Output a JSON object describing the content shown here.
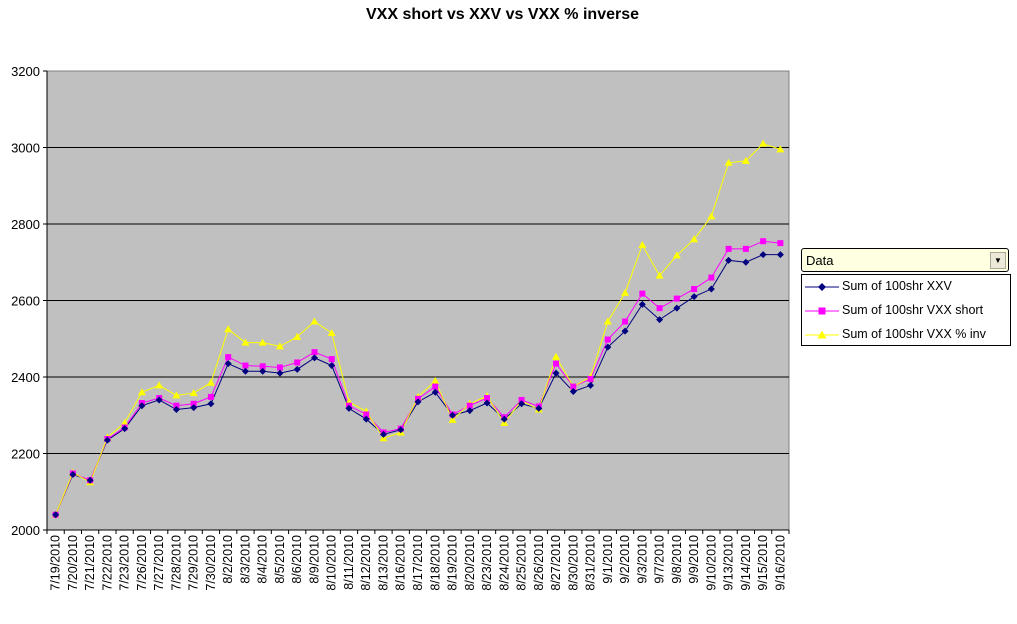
{
  "chart_data": {
    "type": "line",
    "title": "VXX short vs XXV vs VXX % inverse",
    "xlabel": "",
    "ylabel": "",
    "ylim": [
      2000,
      3200
    ],
    "yticks": [
      2000,
      2200,
      2400,
      2600,
      2800,
      3000,
      3200
    ],
    "grid": true,
    "legend_title": "Data",
    "legend_position": "right",
    "categories": [
      "7/19/2010",
      "",
      "7/21/2010",
      "7/22/2010",
      "7/23/2010",
      "7/26/2010",
      "7/27/2010",
      "7/28/2010",
      "7/29/2010",
      "7/30/2010",
      "8/2/2010",
      "",
      "8/4/2010",
      "8/5/2010",
      "8/6/2010",
      "8/9/2010",
      "8/10/2010",
      "8/11/2010",
      "8/12/2010",
      "8/13/2010",
      "8/16/2010",
      "8/17/2010",
      "8/18/2010",
      "8/19/2010",
      "8/20/2010",
      "8/23/2010",
      "8/24/2010",
      "8/25/2010",
      "8/26/2010",
      "8/27/2010",
      "8/30/2010",
      "8/31/2010",
      "9/1/2010",
      "9/2/2010",
      "9/3/2010",
      "9/7/2010",
      "9/8/2010",
      "9/9/2010",
      "9/10/2010",
      "9/13/2010",
      "9/14/2010",
      "9/15/2010",
      "9/16/2010"
    ],
    "tick_labels": [
      "7/19/2010",
      "7/20/2010",
      "7/21/2010",
      "7/22/2010",
      "7/23/2010",
      "7/26/2010",
      "7/27/2010",
      "7/28/2010",
      "7/29/2010",
      "7/30/2010",
      "8/2/2010",
      "8/3/2010",
      "8/4/2010",
      "8/5/2010",
      "8/6/2010",
      "8/9/2010",
      "8/10/2010",
      "8/11/2010",
      "8/12/2010",
      "8/13/2010",
      "8/16/2010",
      "8/17/2010",
      "8/18/2010",
      "8/19/2010",
      "8/20/2010",
      "8/23/2010",
      "8/24/2010",
      "8/25/2010",
      "8/26/2010",
      "8/27/2010",
      "8/30/2010",
      "8/31/2010",
      "9/1/2010",
      "9/2/2010",
      "9/3/2010",
      "9/7/2010",
      "9/8/2010",
      "9/9/2010",
      "9/10/2010",
      "9/13/2010",
      "9/14/2010",
      "9/15/2010",
      "9/16/2010"
    ],
    "series": [
      {
        "name": "Sum of 100shr XXV",
        "color": "#000080",
        "marker": "diamond",
        "values": [
          2040,
          2145,
          2130,
          2235,
          2265,
          2325,
          2340,
          2315,
          2320,
          2330,
          2435,
          2415,
          2415,
          2410,
          2420,
          2450,
          2430,
          2318,
          2290,
          2250,
          2262,
          2335,
          2360,
          2300,
          2312,
          2332,
          2290,
          2330,
          2318,
          2410,
          2362,
          2378,
          2478,
          2520,
          2590,
          2550,
          2580,
          2610,
          2630,
          2705,
          2700,
          2720,
          2720
        ]
      },
      {
        "name": "Sum of 100shr VXX short",
        "color": "#ff00ff",
        "marker": "square",
        "values": [
          2040,
          2148,
          2130,
          2238,
          2268,
          2332,
          2345,
          2325,
          2330,
          2348,
          2452,
          2430,
          2428,
          2425,
          2438,
          2465,
          2447,
          2325,
          2302,
          2255,
          2265,
          2343,
          2375,
          2302,
          2325,
          2345,
          2295,
          2340,
          2323,
          2435,
          2375,
          2395,
          2498,
          2545,
          2618,
          2580,
          2605,
          2630,
          2660,
          2735,
          2735,
          2755,
          2750
        ]
      },
      {
        "name": "Sum of 100shr VXX % inv",
        "color": "#ffff00",
        "marker": "triangle",
        "values": [
          2040,
          2150,
          2125,
          2242,
          2280,
          2360,
          2378,
          2352,
          2358,
          2385,
          2525,
          2490,
          2490,
          2480,
          2505,
          2545,
          2515,
          2335,
          2310,
          2240,
          2255,
          2348,
          2390,
          2288,
          2330,
          2350,
          2280,
          2338,
          2315,
          2453,
          2375,
          2400,
          2545,
          2620,
          2745,
          2665,
          2718,
          2760,
          2820,
          2960,
          2965,
          3010,
          2995
        ]
      }
    ]
  }
}
